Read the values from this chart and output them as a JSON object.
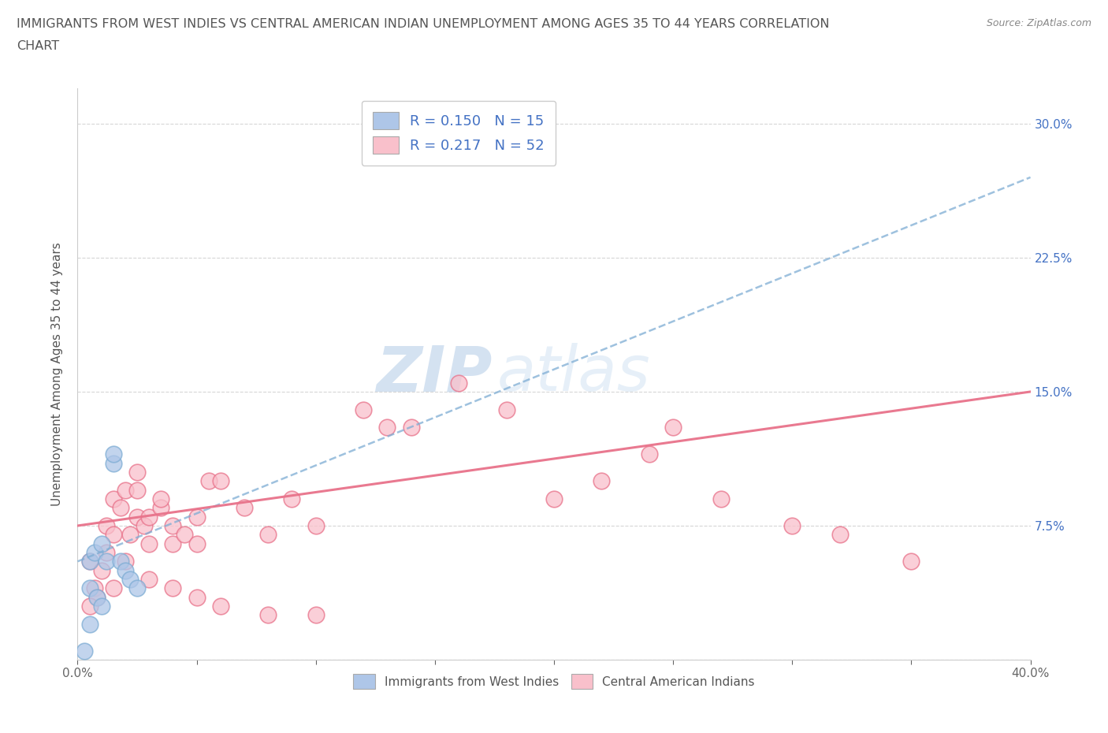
{
  "title": "IMMIGRANTS FROM WEST INDIES VS CENTRAL AMERICAN INDIAN UNEMPLOYMENT AMONG AGES 35 TO 44 YEARS CORRELATION\nCHART",
  "source": "Source: ZipAtlas.com",
  "ylabel": "Unemployment Among Ages 35 to 44 years",
  "xlim": [
    0.0,
    0.4
  ],
  "ylim": [
    0.0,
    0.32
  ],
  "xticks": [
    0.0,
    0.05,
    0.1,
    0.15,
    0.2,
    0.25,
    0.3,
    0.35,
    0.4
  ],
  "xticklabels": [
    "0.0%",
    "",
    "",
    "",
    "",
    "",
    "",
    "",
    "40.0%"
  ],
  "ytick_positions": [
    0.0,
    0.075,
    0.15,
    0.225,
    0.3
  ],
  "yticklabels_right": [
    "",
    "7.5%",
    "15.0%",
    "22.5%",
    "30.0%"
  ],
  "watermark_zip": "ZIP",
  "watermark_atlas": "atlas",
  "legend_label1": "Immigrants from West Indies",
  "legend_label2": "Central American Indians",
  "color_blue": "#aec6e8",
  "color_pink": "#f9c0cb",
  "line_blue": "#7eadd4",
  "line_pink": "#e8728a",
  "west_indies_x": [
    0.005,
    0.007,
    0.01,
    0.012,
    0.015,
    0.015,
    0.018,
    0.02,
    0.022,
    0.025,
    0.005,
    0.008,
    0.01,
    0.005,
    0.003
  ],
  "west_indies_y": [
    0.055,
    0.06,
    0.065,
    0.055,
    0.11,
    0.115,
    0.055,
    0.05,
    0.045,
    0.04,
    0.04,
    0.035,
    0.03,
    0.02,
    0.005
  ],
  "central_american_x": [
    0.005,
    0.007,
    0.008,
    0.01,
    0.012,
    0.012,
    0.015,
    0.015,
    0.018,
    0.02,
    0.022,
    0.025,
    0.025,
    0.025,
    0.028,
    0.03,
    0.03,
    0.035,
    0.035,
    0.04,
    0.04,
    0.045,
    0.05,
    0.05,
    0.055,
    0.06,
    0.07,
    0.08,
    0.09,
    0.1,
    0.12,
    0.13,
    0.14,
    0.16,
    0.18,
    0.2,
    0.22,
    0.24,
    0.25,
    0.27,
    0.3,
    0.32,
    0.35,
    0.005,
    0.015,
    0.02,
    0.03,
    0.04,
    0.05,
    0.06,
    0.08,
    0.1
  ],
  "central_american_y": [
    0.055,
    0.04,
    0.035,
    0.05,
    0.06,
    0.075,
    0.07,
    0.09,
    0.085,
    0.095,
    0.07,
    0.08,
    0.095,
    0.105,
    0.075,
    0.065,
    0.08,
    0.085,
    0.09,
    0.065,
    0.075,
    0.07,
    0.065,
    0.08,
    0.1,
    0.1,
    0.085,
    0.07,
    0.09,
    0.075,
    0.14,
    0.13,
    0.13,
    0.155,
    0.14,
    0.09,
    0.1,
    0.115,
    0.13,
    0.09,
    0.075,
    0.07,
    0.055,
    0.03,
    0.04,
    0.055,
    0.045,
    0.04,
    0.035,
    0.03,
    0.025,
    0.025
  ],
  "trend_blue_x0": 0.0,
  "trend_blue_y0": 0.055,
  "trend_blue_x1": 0.4,
  "trend_blue_y1": 0.27,
  "trend_pink_x0": 0.0,
  "trend_pink_y0": 0.075,
  "trend_pink_x1": 0.4,
  "trend_pink_y1": 0.15
}
